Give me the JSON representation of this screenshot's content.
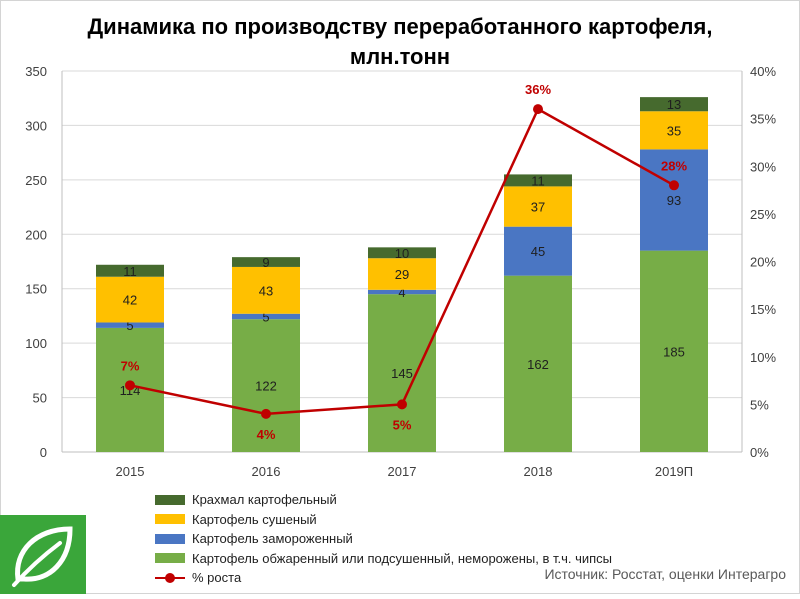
{
  "title_line1": "Динамика по производству переработанного картофеля,",
  "title_line2": "млн.тонн",
  "source": "Источник: Росстат, оценки Интерагро",
  "chart_data": {
    "type": "bar",
    "stacked": true,
    "categories": [
      "2015",
      "2016",
      "2017",
      "2018",
      "2019П"
    ],
    "series": [
      {
        "name": "Картофель обжаренный или подсушенный, неморожены, в т.ч. чипсы",
        "color": "#77ad47",
        "values": [
          114,
          122,
          145,
          162,
          185
        ]
      },
      {
        "name": "Картофель замороженный",
        "color": "#4a76c3",
        "values": [
          5,
          5,
          4,
          45,
          93
        ]
      },
      {
        "name": "Картофель сушеный",
        "color": "#ffc000",
        "values": [
          42,
          43,
          29,
          37,
          35
        ]
      },
      {
        "name": "Крахмал картофельный",
        "color": "#466a2e",
        "values": [
          11,
          9,
          10,
          11,
          13
        ]
      }
    ],
    "line": {
      "name": "% роста",
      "color": "#c00000",
      "values": [
        7,
        4,
        5,
        36,
        28
      ],
      "labels": [
        "7%",
        "4%",
        "5%",
        "36%",
        "28%"
      ]
    },
    "ylim": [
      0,
      350
    ],
    "yticks": [
      "0",
      "50",
      "100",
      "150",
      "200",
      "250",
      "300",
      "350"
    ],
    "y2lim": [
      0,
      40
    ],
    "y2ticks": [
      "0%",
      "5%",
      "10%",
      "15%",
      "20%",
      "25%",
      "30%",
      "35%",
      "40%"
    ],
    "grid": true,
    "legend_position": "bottom"
  },
  "legend": [
    {
      "label": "Крахмал картофельный",
      "color": "#466a2e",
      "kind": "box"
    },
    {
      "label": "Картофель сушеный",
      "color": "#ffc000",
      "kind": "box"
    },
    {
      "label": "Картофель замороженный",
      "color": "#4a76c3",
      "kind": "box"
    },
    {
      "label": "Картофель обжаренный или подсушенный, неморожены, в т.ч. чипсы",
      "color": "#77ad47",
      "kind": "box"
    },
    {
      "label": "% роста",
      "color": "#c00000",
      "kind": "line"
    }
  ],
  "logo_icon": "leaf-icon"
}
